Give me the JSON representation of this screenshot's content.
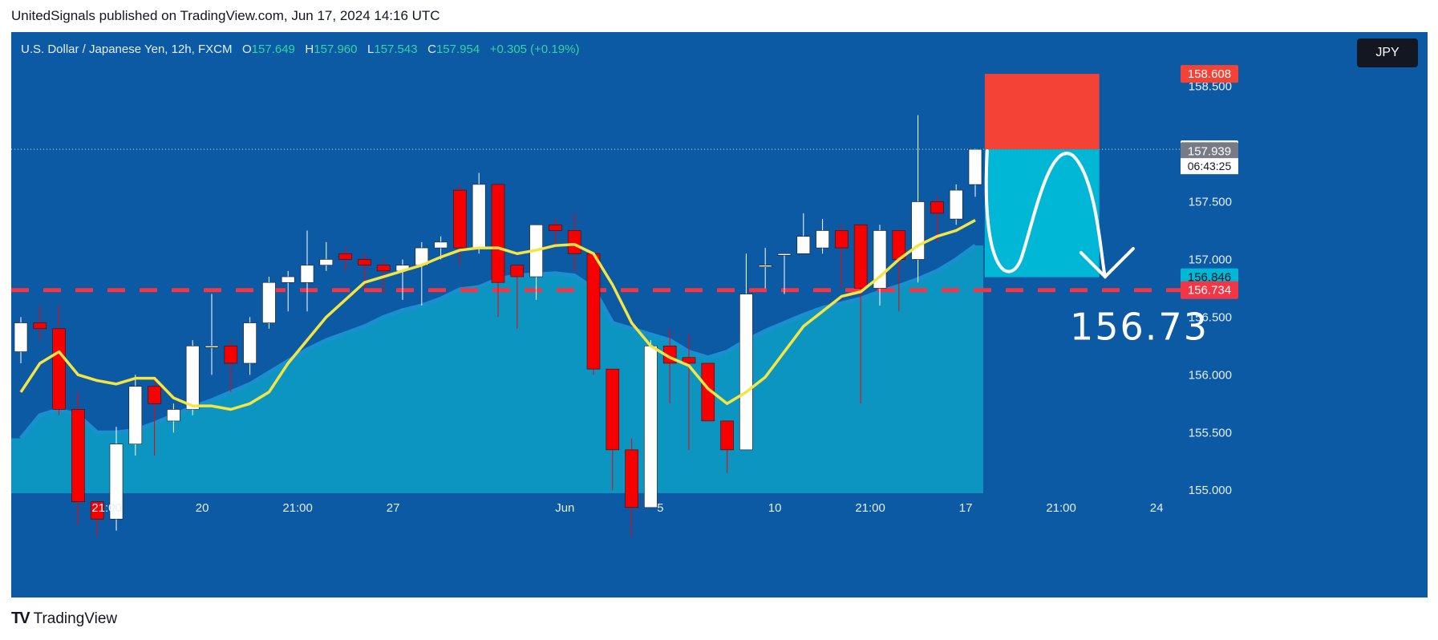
{
  "header": {
    "published": "UnitedSignals published on TradingView.com, Jun 17, 2024 14:16 UTC"
  },
  "legend": {
    "symbol": "U.S. Dollar / Japanese Yen, 12h, FXCM",
    "o_label": "O",
    "o": "157.649",
    "h_label": "H",
    "h": "157.960",
    "l_label": "L",
    "l": "157.543",
    "c_label": "C",
    "c": "157.954",
    "change": "+0.305 (+0.19%)"
  },
  "currency_button": "JPY",
  "footer": {
    "brand": "TradingView",
    "logo": "TV"
  },
  "colors": {
    "background": "#0b5aa3",
    "up": "#ffffff",
    "down": "#f70000",
    "ema": "#f4e542",
    "area": "#0ea0c8",
    "stop": "#f44336",
    "target": "#00b7d6"
  },
  "chart_data": {
    "type": "candlestick",
    "title": "U.S. Dollar / Japanese Yen, 12h, FXCM",
    "x_ticks": [
      {
        "i": 4.5,
        "label": "21:00"
      },
      {
        "i": 9.5,
        "label": "20"
      },
      {
        "i": 14.5,
        "label": "21:00"
      },
      {
        "i": 19.5,
        "label": "27"
      },
      {
        "i": 28.5,
        "label": "Jun"
      },
      {
        "i": 33.5,
        "label": "5"
      },
      {
        "i": 39.5,
        "label": "10"
      },
      {
        "i": 44.5,
        "label": "21:00"
      },
      {
        "i": 49.5,
        "label": "17"
      },
      {
        "i": 54.5,
        "label": "21:00"
      },
      {
        "i": 59.5,
        "label": "24"
      }
    ],
    "y_ticks": [
      "158.500",
      "157.500",
      "157.000",
      "156.500",
      "156.000",
      "155.500",
      "155.000"
    ],
    "y_tick_values": [
      158.5,
      157.5,
      157.0,
      156.5,
      156.0,
      155.5,
      155.0
    ],
    "ylim": [
      154.8,
      158.97
    ],
    "candles": [
      [
        156.2,
        156.45,
        156.1,
        156.5
      ],
      [
        156.45,
        156.4,
        156.3,
        156.6
      ],
      [
        156.4,
        155.7,
        155.65,
        156.6
      ],
      [
        155.7,
        154.9,
        154.7,
        155.85
      ],
      [
        154.9,
        154.75,
        154.6,
        154.9
      ],
      [
        154.75,
        155.4,
        154.65,
        155.55
      ],
      [
        155.4,
        155.9,
        155.3,
        156.0
      ],
      [
        155.9,
        155.75,
        155.3,
        155.95
      ],
      [
        155.6,
        155.7,
        155.5,
        155.75
      ],
      [
        155.7,
        156.25,
        155.65,
        156.3
      ],
      [
        156.25,
        156.25,
        156.0,
        156.7
      ],
      [
        156.25,
        156.1,
        155.85,
        156.3
      ],
      [
        156.1,
        156.45,
        156.0,
        156.5
      ],
      [
        156.45,
        156.8,
        156.4,
        156.85
      ],
      [
        156.8,
        156.85,
        156.55,
        156.9
      ],
      [
        156.8,
        156.95,
        156.55,
        157.25
      ],
      [
        156.95,
        157.0,
        156.9,
        157.15
      ],
      [
        157.05,
        157.0,
        156.9,
        157.1
      ],
      [
        157.0,
        156.95,
        156.75,
        157.05
      ],
      [
        156.95,
        156.9,
        156.7,
        157.0
      ],
      [
        156.9,
        156.95,
        156.65,
        157.0
      ],
      [
        156.95,
        157.1,
        156.6,
        157.15
      ],
      [
        157.1,
        157.15,
        157.0,
        157.2
      ],
      [
        157.6,
        157.1,
        156.95,
        157.65
      ],
      [
        157.1,
        157.65,
        157.05,
        157.75
      ],
      [
        157.65,
        156.8,
        156.5,
        157.65
      ],
      [
        156.95,
        156.85,
        156.4,
        156.95
      ],
      [
        156.85,
        157.3,
        156.65,
        157.3
      ],
      [
        157.3,
        157.25,
        157.1,
        157.35
      ],
      [
        157.25,
        157.05,
        156.9,
        157.4
      ],
      [
        157.05,
        156.05,
        156.0,
        157.05
      ],
      [
        156.05,
        155.35,
        155.0,
        156.05
      ],
      [
        155.35,
        154.85,
        154.6,
        155.45
      ],
      [
        154.85,
        156.25,
        154.85,
        156.3
      ],
      [
        156.25,
        156.1,
        155.75,
        156.4
      ],
      [
        156.15,
        156.1,
        155.35,
        156.35
      ],
      [
        156.1,
        155.6,
        155.6,
        156.1
      ],
      [
        155.6,
        155.35,
        155.15,
        155.6
      ],
      [
        155.35,
        156.7,
        155.35,
        157.05
      ],
      [
        156.95,
        156.95,
        156.75,
        157.1
      ],
      [
        157.05,
        157.05,
        156.7,
        157.05
      ],
      [
        157.05,
        157.2,
        157.05,
        157.4
      ],
      [
        157.1,
        157.25,
        157.05,
        157.35
      ],
      [
        157.25,
        157.1,
        156.75,
        157.3
      ],
      [
        157.3,
        156.75,
        155.75,
        157.3
      ],
      [
        156.75,
        157.25,
        156.6,
        157.3
      ],
      [
        157.25,
        157.0,
        156.55,
        157.25
      ],
      [
        157.0,
        157.5,
        156.8,
        158.25
      ],
      [
        157.5,
        157.4,
        157.15,
        157.55
      ],
      [
        157.35,
        157.6,
        157.3,
        157.65
      ],
      [
        157.649,
        157.954,
        157.543,
        157.96
      ]
    ],
    "ema": [
      155.85,
      156.1,
      156.2,
      156.0,
      155.95,
      155.92,
      155.97,
      155.97,
      155.8,
      155.73,
      155.73,
      155.7,
      155.75,
      155.85,
      156.1,
      156.3,
      156.5,
      156.65,
      156.8,
      156.85,
      156.9,
      156.95,
      157.02,
      157.08,
      157.1,
      157.1,
      157.05,
      157.08,
      157.12,
      157.13,
      157.05,
      156.78,
      156.45,
      156.25,
      156.15,
      156.08,
      155.88,
      155.75,
      155.85,
      155.98,
      156.2,
      156.42,
      156.55,
      156.68,
      156.72,
      156.85,
      157.0,
      157.12,
      157.2,
      157.25,
      157.34
    ],
    "area": [
      155.45,
      155.65,
      155.7,
      155.65,
      155.5,
      155.5,
      155.52,
      155.58,
      155.65,
      155.72,
      155.78,
      155.85,
      155.92,
      156.02,
      156.12,
      156.22,
      156.3,
      156.36,
      156.42,
      156.5,
      156.56,
      156.6,
      156.66,
      156.74,
      156.76,
      156.83,
      156.86,
      156.87,
      156.88,
      156.86,
      156.75,
      156.45,
      156.4,
      156.35,
      156.3,
      156.2,
      156.15,
      156.2,
      156.3,
      156.38,
      156.45,
      156.52,
      156.58,
      156.62,
      156.66,
      156.72,
      156.77,
      156.83,
      156.9,
      157.0,
      157.12
    ],
    "last_price": 157.954,
    "countdown": "06:43:25",
    "price_labels": [
      {
        "label": "158.608",
        "value": 158.608,
        "color": "#f44336",
        "text_color": "#ffffff"
      },
      {
        "label": "157.954",
        "value": 157.954,
        "color": "#ffffff",
        "text_color": "#131722"
      },
      {
        "label": "157.939",
        "value": 157.939,
        "color": "#787b86",
        "text_color": "#ffffff"
      },
      {
        "label": "156.846",
        "value": 156.846,
        "color": "#00b7d6",
        "text_color": "#131722"
      },
      {
        "label": "156.734",
        "value": 156.734,
        "color": "#f23645",
        "text_color": "#ffffff"
      }
    ],
    "target_line": 156.734,
    "target_text": "156.73",
    "position": {
      "entry": 157.954,
      "stop": 158.608,
      "target": 156.846,
      "start_i": 50.5,
      "end_i": 56.5
    }
  }
}
